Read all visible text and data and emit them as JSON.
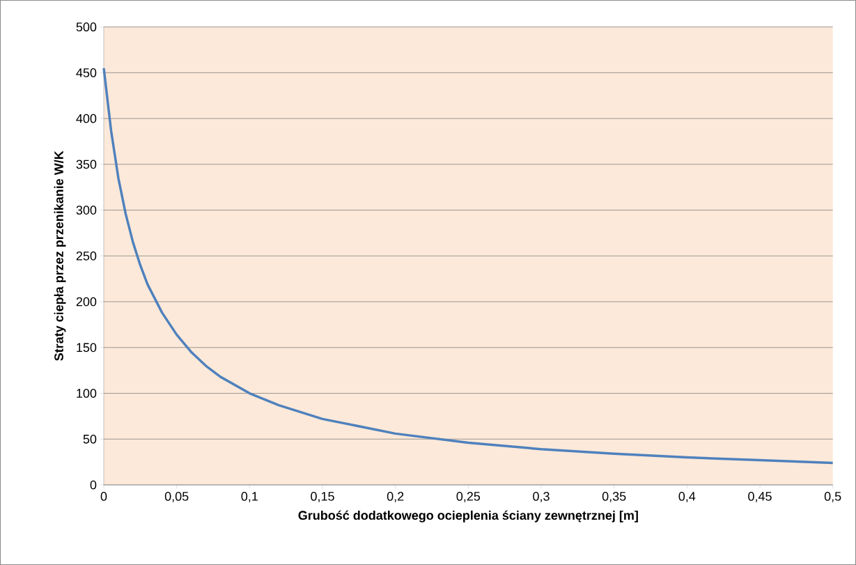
{
  "chart_data": {
    "type": "line",
    "xlabel": "Grubość dodatkowego ocieplenia ściany zewnętrznej [m]",
    "ylabel": "Straty ciepła przez przenikanie W/K",
    "x": [
      0,
      0.005,
      0.01,
      0.015,
      0.02,
      0.025,
      0.03,
      0.04,
      0.05,
      0.06,
      0.07,
      0.08,
      0.1,
      0.12,
      0.15,
      0.2,
      0.25,
      0.3,
      0.35,
      0.4,
      0.45,
      0.5
    ],
    "series": [
      {
        "color": "#4f81bd",
        "values": [
          455,
          387,
          335,
          296,
          265,
          240,
          219,
          188,
          164,
          145,
          130,
          118,
          100,
          87,
          72,
          56,
          46,
          39,
          34,
          30,
          27,
          24
        ]
      }
    ],
    "xlim": [
      0,
      0.5
    ],
    "ylim": [
      0,
      500
    ],
    "xticks": [
      0,
      {
        "value": 0.05,
        "label": "0,05"
      },
      {
        "value": 0.1,
        "label": "0,1"
      },
      {
        "value": 0.15,
        "label": "0,15"
      },
      {
        "value": 0.2,
        "label": "0,2"
      },
      {
        "value": 0.25,
        "label": "0,25"
      },
      {
        "value": 0.3,
        "label": "0,3"
      },
      {
        "value": 0.35,
        "label": "0,35"
      },
      {
        "value": 0.4,
        "label": "0,4"
      },
      {
        "value": 0.45,
        "label": "0,45"
      },
      {
        "value": 0.5,
        "label": "0,5"
      }
    ],
    "yticks": [
      0,
      50,
      100,
      150,
      200,
      250,
      300,
      350,
      400,
      450,
      500
    ],
    "grid": "y",
    "line_style": "solid"
  }
}
